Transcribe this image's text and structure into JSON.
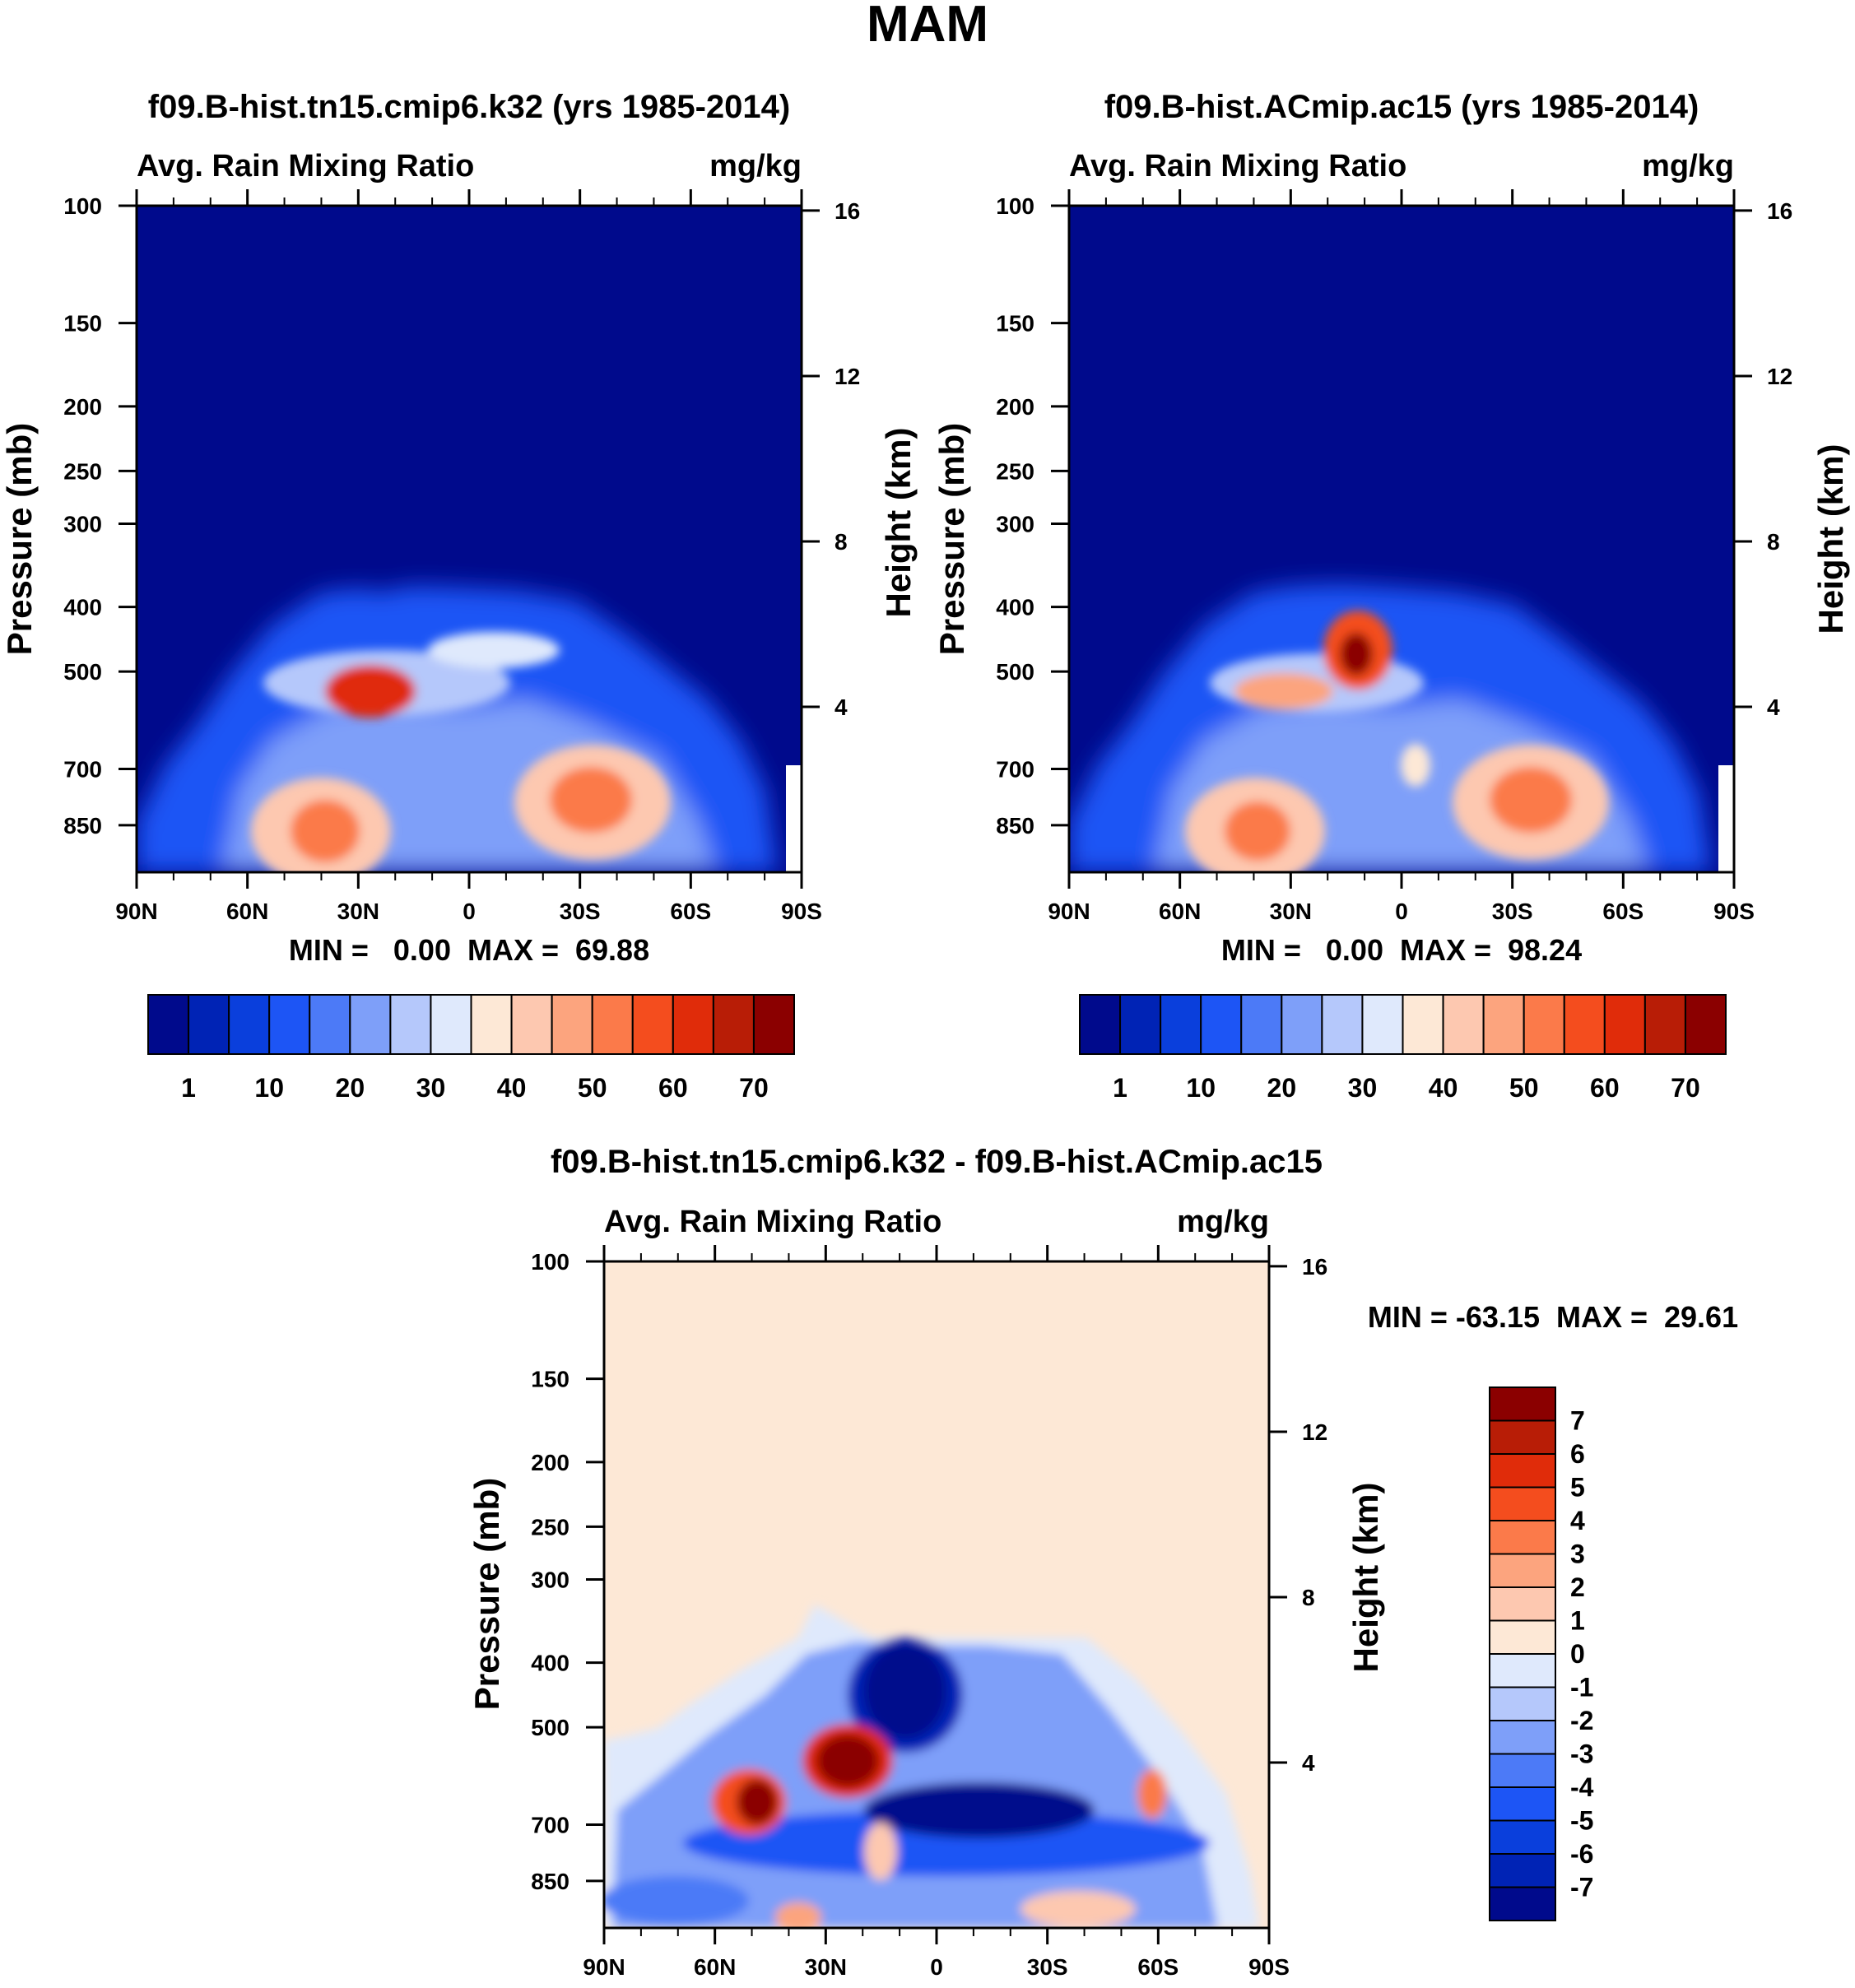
{
  "page_title": "MAM",
  "chart_data": [
    {
      "type": "heatmap",
      "title": "f09.B-hist.tn15.cmip6.k32 (yrs 1985-2014)",
      "left_label": "Avg. Rain Mixing Ratio",
      "right_label": "mg/kg",
      "xlabel": "",
      "ylabel": "Pressure (mb)",
      "y2label": "Height (km)",
      "x_ticks": [
        "90N",
        "60N",
        "30N",
        "0",
        "30S",
        "60S",
        "90S"
      ],
      "x_values": [
        90,
        60,
        30,
        0,
        -30,
        -60,
        -90
      ],
      "y_ticks": [
        "100",
        "150",
        "200",
        "250",
        "300",
        "400",
        "500",
        "700",
        "850"
      ],
      "y_values": [
        100,
        150,
        200,
        250,
        300,
        400,
        500,
        700,
        850
      ],
      "y2_ticks": [
        "16",
        "12",
        "8",
        "4"
      ],
      "y2_values": [
        16,
        12,
        8,
        4
      ],
      "ylim": [
        100,
        1000
      ],
      "stats": "MIN =   0.00  MAX =  69.88",
      "colorbar": {
        "orientation": "horizontal",
        "labels": [
          "1",
          "10",
          "20",
          "30",
          "40",
          "50",
          "60",
          "70"
        ],
        "colors": [
          "#000a8c",
          "#0023b5",
          "#0a3fdc",
          "#1d55f5",
          "#4c7af7",
          "#7e9ff9",
          "#b5c8fb",
          "#dfe9fc",
          "#fde8d6",
          "#fdc8b0",
          "#fca47e",
          "#fb7a4a",
          "#f44d1e",
          "#e02c0a",
          "#b81d06",
          "#8b0000"
        ]
      },
      "features": [
        {
          "name": "sh-lower-max",
          "lat": -34,
          "p": 700,
          "value": 60
        },
        {
          "name": "nh-lower-max",
          "lat": 38,
          "p": 800,
          "value": 55
        },
        {
          "name": "nh-midlevel-band",
          "lat": 28,
          "p": 500,
          "value": 65
        }
      ]
    },
    {
      "type": "heatmap",
      "title": "f09.B-hist.ACmip.ac15 (yrs 1985-2014)",
      "left_label": "Avg. Rain Mixing Ratio",
      "right_label": "mg/kg",
      "xlabel": "",
      "ylabel": "Pressure (mb)",
      "y2label": "Height (km)",
      "x_ticks": [
        "90N",
        "60N",
        "30N",
        "0",
        "30S",
        "60S",
        "90S"
      ],
      "x_values": [
        90,
        60,
        30,
        0,
        -30,
        -60,
        -90
      ],
      "y_ticks": [
        "100",
        "150",
        "200",
        "250",
        "300",
        "400",
        "500",
        "700",
        "850"
      ],
      "y_values": [
        100,
        150,
        200,
        250,
        300,
        400,
        500,
        700,
        850
      ],
      "y2_ticks": [
        "16",
        "12",
        "8",
        "4"
      ],
      "y2_values": [
        16,
        12,
        8,
        4
      ],
      "ylim": [
        100,
        1000
      ],
      "stats": "MIN =   0.00  MAX =  98.24",
      "colorbar": {
        "orientation": "horizontal",
        "labels": [
          "1",
          "10",
          "20",
          "30",
          "40",
          "50",
          "60",
          "70"
        ],
        "colors": [
          "#000a8c",
          "#0023b5",
          "#0a3fdc",
          "#1d55f5",
          "#4c7af7",
          "#7e9ff9",
          "#b5c8fb",
          "#dfe9fc",
          "#fde8d6",
          "#fdc8b0",
          "#fca47e",
          "#fb7a4a",
          "#f44d1e",
          "#e02c0a",
          "#b81d06",
          "#8b0000"
        ]
      },
      "features": [
        {
          "name": "sh-lower-max",
          "lat": -34,
          "p": 700,
          "value": 58
        },
        {
          "name": "nh-lower-max",
          "lat": 38,
          "p": 800,
          "value": 52
        },
        {
          "name": "upper-max",
          "lat": 13,
          "p": 430,
          "value": 98
        }
      ]
    },
    {
      "type": "heatmap",
      "title": "f09.B-hist.tn15.cmip6.k32 - f09.B-hist.ACmip.ac15",
      "left_label": "Avg. Rain Mixing Ratio",
      "right_label": "mg/kg",
      "xlabel": "",
      "ylabel": "Pressure (mb)",
      "y2label": "Height (km)",
      "x_ticks": [
        "90N",
        "60N",
        "30N",
        "0",
        "30S",
        "60S",
        "90S"
      ],
      "x_values": [
        90,
        60,
        30,
        0,
        -30,
        -60,
        -90
      ],
      "y_ticks": [
        "100",
        "150",
        "200",
        "250",
        "300",
        "400",
        "500",
        "700",
        "850"
      ],
      "y_values": [
        100,
        150,
        200,
        250,
        300,
        400,
        500,
        700,
        850
      ],
      "y2_ticks": [
        "16",
        "12",
        "8",
        "4"
      ],
      "y2_values": [
        16,
        12,
        8,
        4
      ],
      "ylim": [
        100,
        1000
      ],
      "stats": "MIN = -63.15  MAX =  29.61",
      "colorbar": {
        "orientation": "vertical",
        "labels": [
          "7",
          "6",
          "5",
          "4",
          "3",
          "2",
          "1",
          "0",
          "-1",
          "-2",
          "-3",
          "-4",
          "-5",
          "-6",
          "-7"
        ],
        "colors": [
          "#8b0000",
          "#b81d06",
          "#e02c0a",
          "#f44d1e",
          "#fb7a4a",
          "#fca47e",
          "#fdc8b0",
          "#fde8d6",
          "#dfe9fc",
          "#b5c8fb",
          "#7e9ff9",
          "#4c7af7",
          "#1d55f5",
          "#0a3fdc",
          "#0023b5",
          "#000a8c"
        ]
      },
      "features": [
        {
          "name": "upper-min",
          "lat": 12,
          "p": 420,
          "value": -63.15
        },
        {
          "name": "midlevel-max",
          "lat": 25,
          "p": 520,
          "value": 29.61
        }
      ]
    }
  ]
}
